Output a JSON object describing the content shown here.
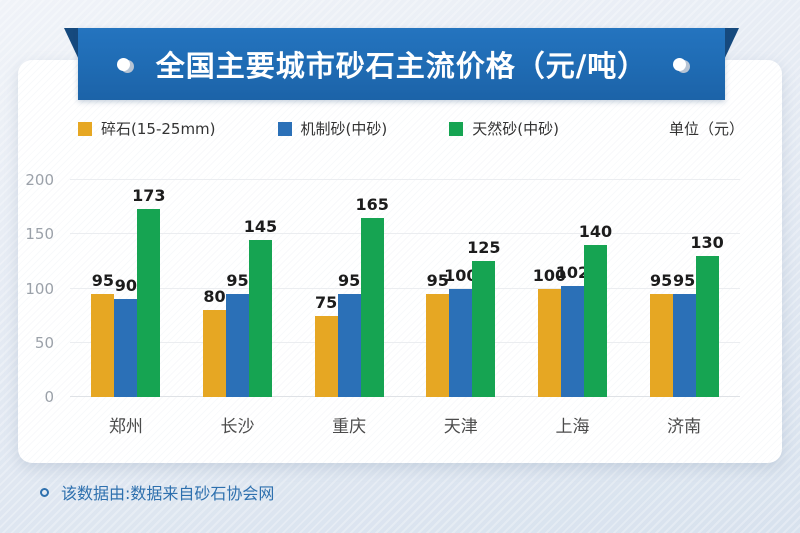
{
  "banner": {
    "title": "全国主要城市砂石主流价格（元/吨）"
  },
  "legend": {
    "items": [
      {
        "label": "碎石(15-25mm)",
        "color": "#e6a723"
      },
      {
        "label": "机制砂(中砂)",
        "color": "#2b70b7"
      },
      {
        "label": "天然砂(中砂)",
        "color": "#16a452"
      }
    ],
    "unit_label": "单位（元）"
  },
  "chart_data": {
    "type": "bar",
    "title": "全国主要城市砂石主流价格（元/吨）",
    "categories": [
      "郑州",
      "长沙",
      "重庆",
      "天津",
      "上海",
      "济南"
    ],
    "series": [
      {
        "name": "碎石(15-25mm)",
        "color": "#e6a723",
        "values": [
          95,
          80,
          75,
          95,
          100,
          95
        ]
      },
      {
        "name": "机制砂(中砂)",
        "color": "#2b70b7",
        "values": [
          90,
          95,
          95,
          100,
          102,
          95
        ]
      },
      {
        "name": "天然砂(中砂)",
        "color": "#16a452",
        "values": [
          173,
          145,
          165,
          125,
          140,
          130
        ]
      }
    ],
    "xlabel": "",
    "ylabel": "",
    "ylim": [
      0,
      200
    ],
    "yticks": [
      0,
      50,
      100,
      150,
      200
    ],
    "grid": true,
    "legend_position": "top",
    "unit": "单位（元）"
  },
  "footer": {
    "text": "该数据由:数据来自砂石协会网"
  }
}
